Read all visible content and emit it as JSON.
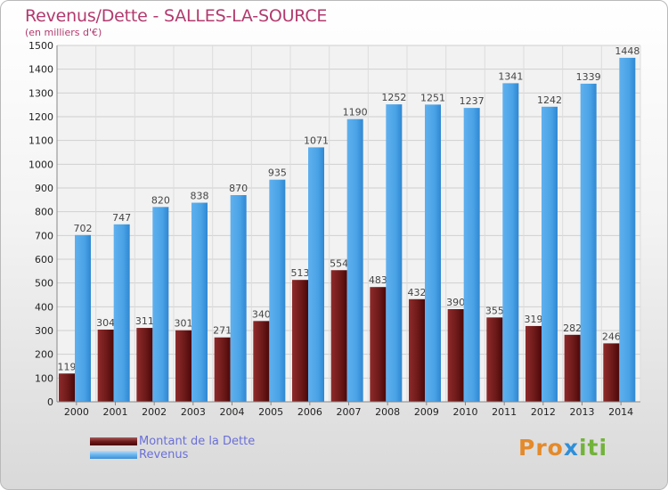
{
  "title": "Revenus/Dette - SALLES-LA-SOURCE",
  "subtitle": "(en milliers d'€)",
  "logo": {
    "p": "Pro",
    "x": "x",
    "i": "iti"
  },
  "colors": {
    "dette": "#6e1a1a",
    "revenus": "#4aa3e6"
  },
  "chart_data": {
    "type": "bar",
    "categories": [
      "2000",
      "2001",
      "2002",
      "2003",
      "2004",
      "2005",
      "2006",
      "2007",
      "2008",
      "2009",
      "2010",
      "2011",
      "2012",
      "2013",
      "2014"
    ],
    "series": [
      {
        "name": "Montant de la Dette",
        "values": [
          119,
          304,
          311,
          301,
          271,
          340,
          513,
          554,
          483,
          432,
          390,
          355,
          319,
          282,
          246
        ]
      },
      {
        "name": "Revenus",
        "values": [
          702,
          747,
          820,
          838,
          870,
          935,
          1071,
          1190,
          1252,
          1251,
          1237,
          1341,
          1242,
          1339,
          1448
        ]
      }
    ],
    "ylim": [
      0,
      1500
    ],
    "yticks": [
      0,
      100,
      200,
      300,
      400,
      500,
      600,
      700,
      800,
      900,
      1000,
      1100,
      1200,
      1300,
      1400,
      1500
    ],
    "grid": true,
    "legend_position": "bottom-left"
  }
}
